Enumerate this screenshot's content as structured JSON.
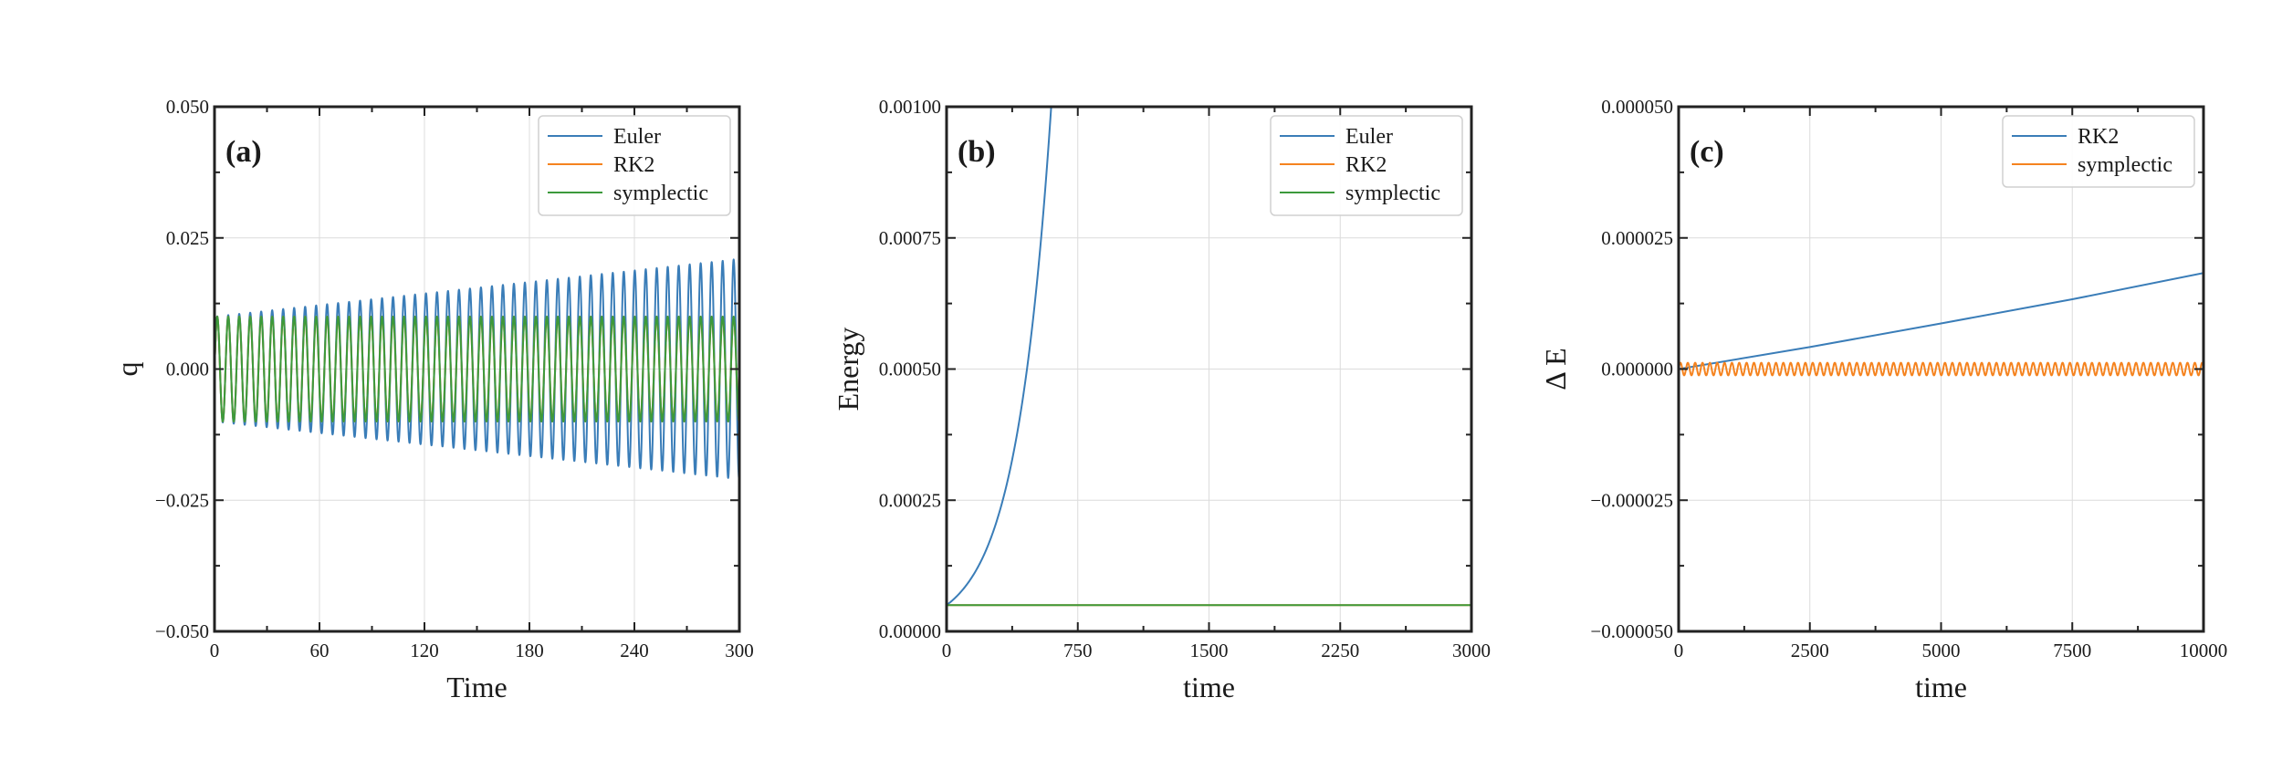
{
  "colors": {
    "blue": "#3a7db8",
    "orange": "#f5831f",
    "green": "#3c9a3c"
  },
  "chart_data": [
    {
      "type": "line",
      "panel": "(a)",
      "xlabel": "Time",
      "ylabel": "q",
      "xlim": [
        0,
        300
      ],
      "ylim": [
        -0.05,
        0.05
      ],
      "xticks": [
        0,
        60,
        120,
        180,
        240,
        300
      ],
      "xtick_labels": [
        "0",
        "60",
        "120",
        "180",
        "240",
        "300"
      ],
      "yticks": [
        -0.05,
        -0.025,
        0,
        0.025,
        0.05
      ],
      "ytick_labels": [
        "−0.050",
        "−0.025",
        "0.000",
        "0.025",
        "0.050"
      ],
      "grid": true,
      "legend": "top-right",
      "series": [
        {
          "name": "Euler",
          "color": "#3a7db8",
          "kind": "oscillation",
          "amplitude_start": 0.01,
          "amplitude_end": 0.021,
          "period": 6.28,
          "legend": true
        },
        {
          "name": "RK2",
          "color": "#f5831f",
          "kind": "oscillation",
          "amplitude_start": 0.01,
          "amplitude_end": 0.01,
          "period": 6.28,
          "legend": true
        },
        {
          "name": "symplectic",
          "color": "#3c9a3c",
          "kind": "oscillation",
          "amplitude_start": 0.01,
          "amplitude_end": 0.01,
          "period": 6.28,
          "legend": true
        }
      ]
    },
    {
      "type": "line",
      "panel": "(b)",
      "xlabel": "time",
      "ylabel": "Energy",
      "xlim": [
        0,
        3000
      ],
      "ylim": [
        0,
        0.001
      ],
      "xticks": [
        0,
        750,
        1500,
        2250,
        3000
      ],
      "xtick_labels": [
        "0",
        "750",
        "1500",
        "2250",
        "3000"
      ],
      "yticks": [
        0,
        0.00025,
        0.0005,
        0.00075,
        0.001
      ],
      "ytick_labels": [
        "0.00000",
        "0.00025",
        "0.00050",
        "0.00075",
        "0.00100"
      ],
      "grid": true,
      "legend": "top-right",
      "series": [
        {
          "name": "Euler",
          "color": "#3a7db8",
          "kind": "exponential",
          "x": [
            0,
            100,
            200,
            300,
            400,
            500,
            600
          ],
          "y": [
            5e-05,
            8.25e-05,
            0.000136,
            0.000225,
            0.000371,
            0.000612,
            0.00101
          ],
          "legend": true
        },
        {
          "name": "RK2",
          "color": "#f5831f",
          "kind": "line",
          "x": [
            0,
            3000
          ],
          "y": [
            5e-05,
            5e-05
          ],
          "legend": true
        },
        {
          "name": "symplectic",
          "color": "#3c9a3c",
          "kind": "line",
          "x": [
            0,
            3000
          ],
          "y": [
            5e-05,
            5e-05
          ],
          "legend": true
        }
      ]
    },
    {
      "type": "line",
      "panel": "(c)",
      "xlabel": "time",
      "ylabel": "Δ E",
      "xlim": [
        0,
        10000
      ],
      "ylim": [
        -5e-05,
        5e-05
      ],
      "xticks": [
        0,
        2500,
        5000,
        7500,
        10000
      ],
      "xtick_labels": [
        "0",
        "2500",
        "5000",
        "7500",
        "10000"
      ],
      "yticks": [
        -5e-05,
        -2.5e-05,
        0,
        2.5e-05,
        5e-05
      ],
      "ytick_labels": [
        "−0.000050",
        "−0.000025",
        "0.000000",
        "0.000025",
        "0.000050"
      ],
      "grid": true,
      "legend": "top-right",
      "series": [
        {
          "name": "RK2",
          "color": "#3a7db8",
          "kind": "line",
          "x": [
            0,
            2500,
            5000,
            7500,
            10000
          ],
          "y": [
            0,
            4.2e-06,
            8.7e-06,
            1.33e-05,
            1.83e-05
          ],
          "legend": true
        },
        {
          "name": "symplectic",
          "color": "#f5831f",
          "kind": "oscillation",
          "amplitude_start": 1.2e-06,
          "amplitude_end": 1.2e-06,
          "period": 140,
          "legend": true
        }
      ]
    }
  ]
}
